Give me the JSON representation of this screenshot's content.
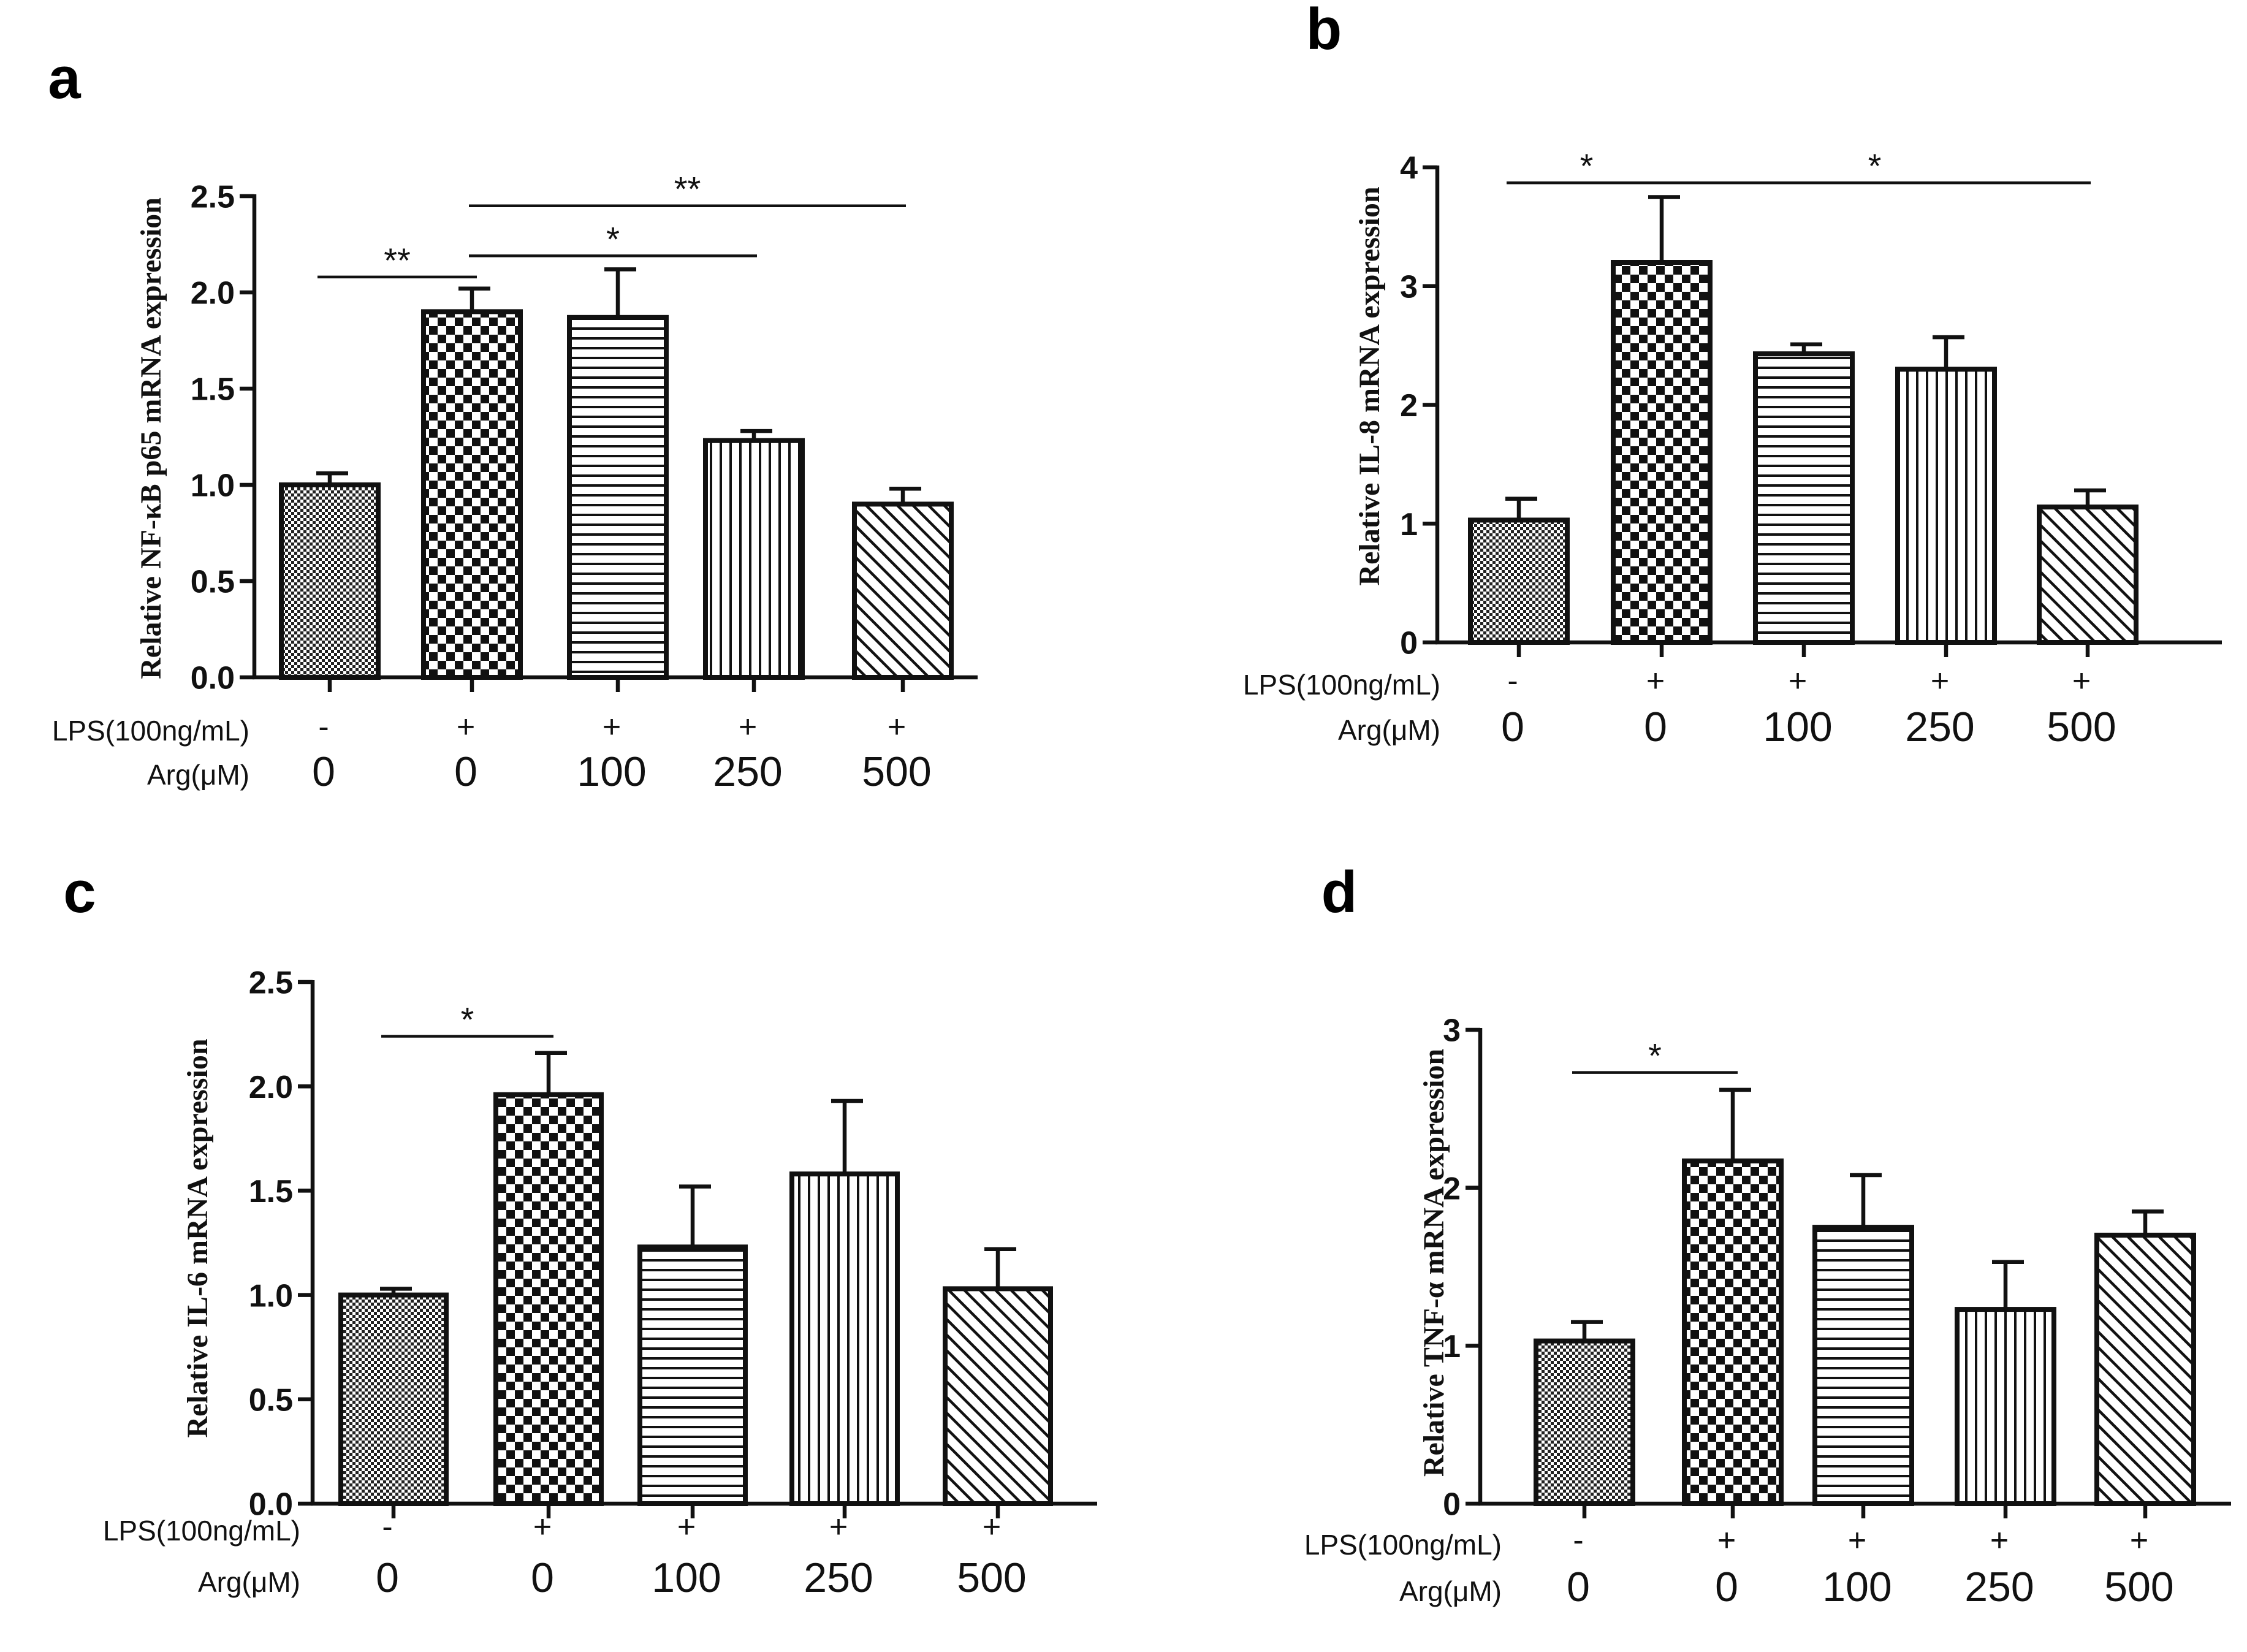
{
  "chart_data": [
    {
      "panel": "a",
      "type": "bar",
      "ylabel": "Relative NF-κB p65  mRNA expression",
      "ylim": [
        0,
        2.5
      ],
      "yticks": [
        "0.0",
        "0.5",
        "1.0",
        "1.5",
        "2.0",
        "2.5"
      ],
      "conditions": [
        {
          "label": "LPS(100ng/mL)",
          "values": [
            "-",
            "+",
            "+",
            "+",
            "+"
          ]
        },
        {
          "label": "Arg(μM)",
          "values": [
            "0",
            "0",
            "100",
            "250",
            "500"
          ]
        }
      ],
      "values": [
        1.0,
        1.9,
        1.87,
        1.23,
        0.9
      ],
      "errors": [
        0.06,
        0.12,
        0.25,
        0.05,
        0.08
      ],
      "patterns": [
        "fine-dots",
        "checker",
        "horizontal",
        "vertical",
        "diagonal"
      ],
      "significance": [
        {
          "from": 0,
          "to": 1,
          "label": "**",
          "y": 2.08
        },
        {
          "from": 1,
          "to": 3,
          "label": "*",
          "y": 2.19
        },
        {
          "from": 1,
          "to": 4,
          "label": "**",
          "y": 2.45
        }
      ]
    },
    {
      "panel": "b",
      "type": "bar",
      "ylabel": "Relative IL-8 mRNA expression",
      "ylim": [
        0,
        4
      ],
      "yticks": [
        "0",
        "1",
        "2",
        "3",
        "4"
      ],
      "conditions": [
        {
          "label": "LPS(100ng/mL)",
          "values": [
            "-",
            "+",
            "+",
            "+",
            "+"
          ]
        },
        {
          "label": "Arg(μM)",
          "values": [
            "0",
            "0",
            "100",
            "250",
            "500"
          ]
        }
      ],
      "values": [
        1.03,
        3.2,
        2.43,
        2.3,
        1.14
      ],
      "errors": [
        0.18,
        0.55,
        0.08,
        0.27,
        0.14
      ],
      "patterns": [
        "fine-dots",
        "checker",
        "horizontal",
        "vertical",
        "diagonal"
      ],
      "significance": [
        {
          "from": 0,
          "to": 1,
          "label": "*",
          "y": 3.87
        },
        {
          "from": 1,
          "to": 4,
          "label": "*",
          "y": 3.87
        }
      ]
    },
    {
      "panel": "c",
      "type": "bar",
      "ylabel": "Relative IL-6  mRNA expression",
      "ylim": [
        0,
        2.5
      ],
      "yticks": [
        "0.0",
        "0.5",
        "1.0",
        "1.5",
        "2.0",
        "2.5"
      ],
      "conditions": [
        {
          "label": "LPS(100ng/mL)",
          "values": [
            "-",
            "+",
            "+",
            "+",
            "+"
          ]
        },
        {
          "label": "Arg(μM)",
          "values": [
            "0",
            "0",
            "100",
            "250",
            "500"
          ]
        }
      ],
      "values": [
        1.0,
        1.96,
        1.23,
        1.58,
        1.03
      ],
      "errors": [
        0.03,
        0.2,
        0.29,
        0.35,
        0.19
      ],
      "patterns": [
        "fine-dots",
        "checker",
        "horizontal",
        "vertical",
        "diagonal"
      ],
      "significance": [
        {
          "from": 0,
          "to": 1,
          "label": "*",
          "y": 2.24
        }
      ]
    },
    {
      "panel": "d",
      "type": "bar",
      "ylabel": "Relative TNF-α mRNA expression",
      "ylim": [
        0,
        3
      ],
      "yticks": [
        "0",
        "1",
        "2",
        "3"
      ],
      "conditions": [
        {
          "label": "LPS(100ng/mL)",
          "values": [
            "-",
            "+",
            "+",
            "+",
            "+"
          ]
        },
        {
          "label": "Arg(μM)",
          "values": [
            "0",
            "0",
            "100",
            "250",
            "500"
          ]
        }
      ],
      "values": [
        1.03,
        2.17,
        1.75,
        1.23,
        1.7
      ],
      "errors": [
        0.12,
        0.45,
        0.33,
        0.3,
        0.15
      ],
      "patterns": [
        "fine-dots",
        "checker",
        "horizontal",
        "vertical",
        "diagonal"
      ],
      "significance": [
        {
          "from": 0,
          "to": 1,
          "label": "*",
          "y": 2.73
        }
      ]
    }
  ]
}
